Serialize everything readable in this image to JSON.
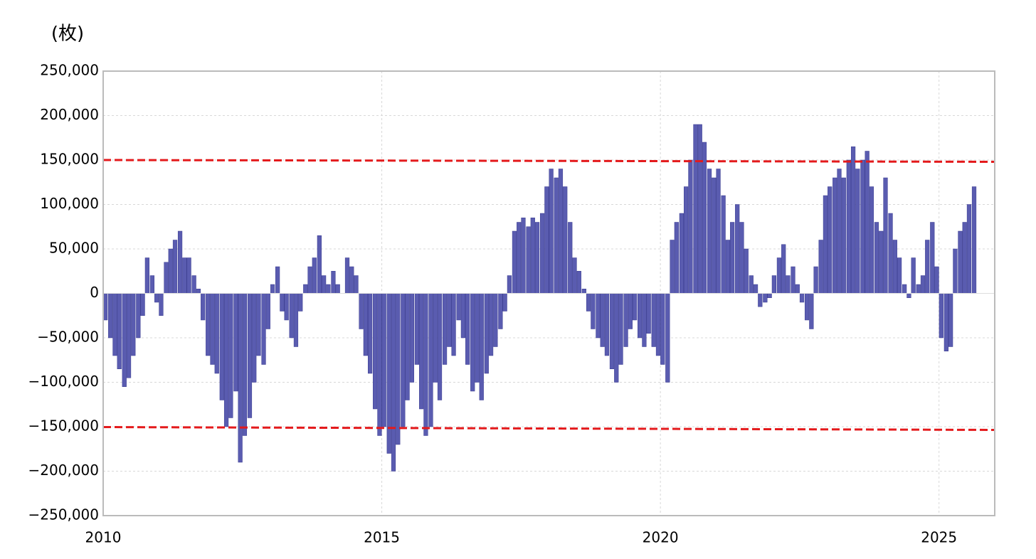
{
  "chart_data": {
    "type": "bar",
    "y_label": "(枚)",
    "color": "#5a5cb0",
    "negative_tick_color": "#e00000",
    "grid": true,
    "xlim": [
      2010,
      2026
    ],
    "xticks": [
      2010,
      2015,
      2020,
      2025
    ],
    "ylim": [
      -250000,
      250000
    ],
    "yticks": [
      {
        "value": -250000,
        "label": "−250,000"
      },
      {
        "value": -200000,
        "label": "−200,000"
      },
      {
        "value": -150000,
        "label": "−150,000"
      },
      {
        "value": -100000,
        "label": "−100,000"
      },
      {
        "value": -50000,
        "label": "−50,000"
      },
      0,
      {
        "value": 50000,
        "label": "50,000"
      },
      {
        "value": 100000,
        "label": "100,000"
      },
      {
        "value": 150000,
        "label": "150,000"
      },
      {
        "value": 200000,
        "label": "200,000"
      },
      {
        "value": 250000,
        "label": "250,000"
      }
    ],
    "reference_lines": [
      {
        "color": "#e41a1c",
        "x": [
          2010,
          2026
        ],
        "values": [
          150000,
          148000
        ]
      },
      {
        "color": "#e41a1c",
        "x": [
          2010,
          2026
        ],
        "values": [
          -150400,
          -153600
        ]
      }
    ],
    "x": [
      2010.04,
      2010.13,
      2010.21,
      2010.29,
      2010.38,
      2010.46,
      2010.54,
      2010.63,
      2010.71,
      2010.79,
      2010.88,
      2010.96,
      2011.04,
      2011.13,
      2011.21,
      2011.29,
      2011.38,
      2011.46,
      2011.54,
      2011.63,
      2011.71,
      2011.79,
      2011.88,
      2011.96,
      2012.04,
      2012.13,
      2012.21,
      2012.29,
      2012.38,
      2012.46,
      2012.54,
      2012.63,
      2012.71,
      2012.79,
      2012.88,
      2012.96,
      2013.04,
      2013.13,
      2013.21,
      2013.29,
      2013.38,
      2013.46,
      2013.54,
      2013.63,
      2013.71,
      2013.79,
      2013.88,
      2013.96,
      2014.04,
      2014.13,
      2014.21,
      2014.29,
      2014.38,
      2014.46,
      2014.54,
      2014.63,
      2014.71,
      2014.79,
      2014.88,
      2014.96,
      2015.04,
      2015.13,
      2015.21,
      2015.29,
      2015.38,
      2015.46,
      2015.54,
      2015.63,
      2015.71,
      2015.79,
      2015.88,
      2015.96,
      2016.04,
      2016.13,
      2016.21,
      2016.29,
      2016.38,
      2016.46,
      2016.54,
      2016.63,
      2016.71,
      2016.79,
      2016.88,
      2016.96,
      2017.04,
      2017.13,
      2017.21,
      2017.29,
      2017.38,
      2017.46,
      2017.54,
      2017.63,
      2017.71,
      2017.79,
      2017.88,
      2017.96,
      2018.04,
      2018.13,
      2018.21,
      2018.29,
      2018.38,
      2018.46,
      2018.54,
      2018.63,
      2018.71,
      2018.79,
      2018.88,
      2018.96,
      2019.04,
      2019.13,
      2019.21,
      2019.29,
      2019.38,
      2019.46,
      2019.54,
      2019.63,
      2019.71,
      2019.79,
      2019.88,
      2019.96,
      2020.04,
      2020.13,
      2020.21,
      2020.29,
      2020.38,
      2020.46,
      2020.54,
      2020.63,
      2020.71,
      2020.79,
      2020.88,
      2020.96,
      2021.04,
      2021.13,
      2021.21,
      2021.29,
      2021.38,
      2021.46,
      2021.54,
      2021.63,
      2021.71,
      2021.79,
      2021.88,
      2021.96,
      2022.04,
      2022.13,
      2022.21,
      2022.29,
      2022.38,
      2022.46,
      2022.54,
      2022.63,
      2022.71,
      2022.79,
      2022.88,
      2022.96,
      2023.04,
      2023.13,
      2023.21,
      2023.29,
      2023.38,
      2023.46,
      2023.54,
      2023.63,
      2023.71,
      2023.79,
      2023.88,
      2023.96,
      2024.04,
      2024.13,
      2024.21,
      2024.29,
      2024.38,
      2024.46,
      2024.54,
      2024.63,
      2024.71,
      2024.79,
      2024.88,
      2024.96,
      2025.04,
      2025.13,
      2025.21,
      2025.29,
      2025.38,
      2025.46,
      2025.54,
      2025.63
    ],
    "values": [
      -30000,
      -50000,
      -70000,
      -85000,
      -105000,
      -95000,
      -70000,
      -50000,
      -25000,
      40000,
      20000,
      -10000,
      -25000,
      35000,
      50000,
      60000,
      70000,
      40000,
      40000,
      20000,
      5000,
      -30000,
      -70000,
      -80000,
      -90000,
      -120000,
      -150000,
      -140000,
      -110000,
      -190000,
      -160000,
      -140000,
      -100000,
      -70000,
      -80000,
      -40000,
      10000,
      30000,
      -20000,
      -30000,
      -50000,
      -60000,
      -20000,
      10000,
      30000,
      40000,
      65000,
      20000,
      10000,
      25000,
      10000,
      0,
      40000,
      30000,
      20000,
      -40000,
      -70000,
      -90000,
      -130000,
      -160000,
      -150000,
      -180000,
      -200000,
      -170000,
      -150000,
      -120000,
      -100000,
      -80000,
      -130000,
      -160000,
      -150000,
      -100000,
      -120000,
      -80000,
      -60000,
      -70000,
      -30000,
      -50000,
      -80000,
      -110000,
      -100000,
      -120000,
      -90000,
      -70000,
      -60000,
      -40000,
      -20000,
      20000,
      70000,
      80000,
      85000,
      75000,
      85000,
      80000,
      90000,
      120000,
      140000,
      130000,
      140000,
      120000,
      80000,
      40000,
      25000,
      5000,
      -20000,
      -40000,
      -50000,
      -60000,
      -70000,
      -85000,
      -100000,
      -80000,
      -60000,
      -40000,
      -30000,
      -50000,
      -60000,
      -45000,
      -60000,
      -70000,
      -80000,
      -100000,
      60000,
      80000,
      90000,
      120000,
      150000,
      190000,
      190000,
      170000,
      140000,
      130000,
      140000,
      110000,
      60000,
      80000,
      100000,
      80000,
      50000,
      20000,
      10000,
      -15000,
      -10000,
      -5000,
      20000,
      40000,
      55000,
      20000,
      30000,
      10000,
      -10000,
      -30000,
      -40000,
      30000,
      60000,
      110000,
      120000,
      130000,
      140000,
      130000,
      150000,
      165000,
      140000,
      150000,
      160000,
      120000,
      80000,
      70000,
      130000,
      90000,
      60000,
      40000,
      10000,
      -5000,
      40000,
      10000,
      20000,
      60000,
      80000,
      30000,
      -50000,
      -65000,
      -60000,
      50000,
      70000,
      80000,
      100000,
      120000
    ]
  }
}
